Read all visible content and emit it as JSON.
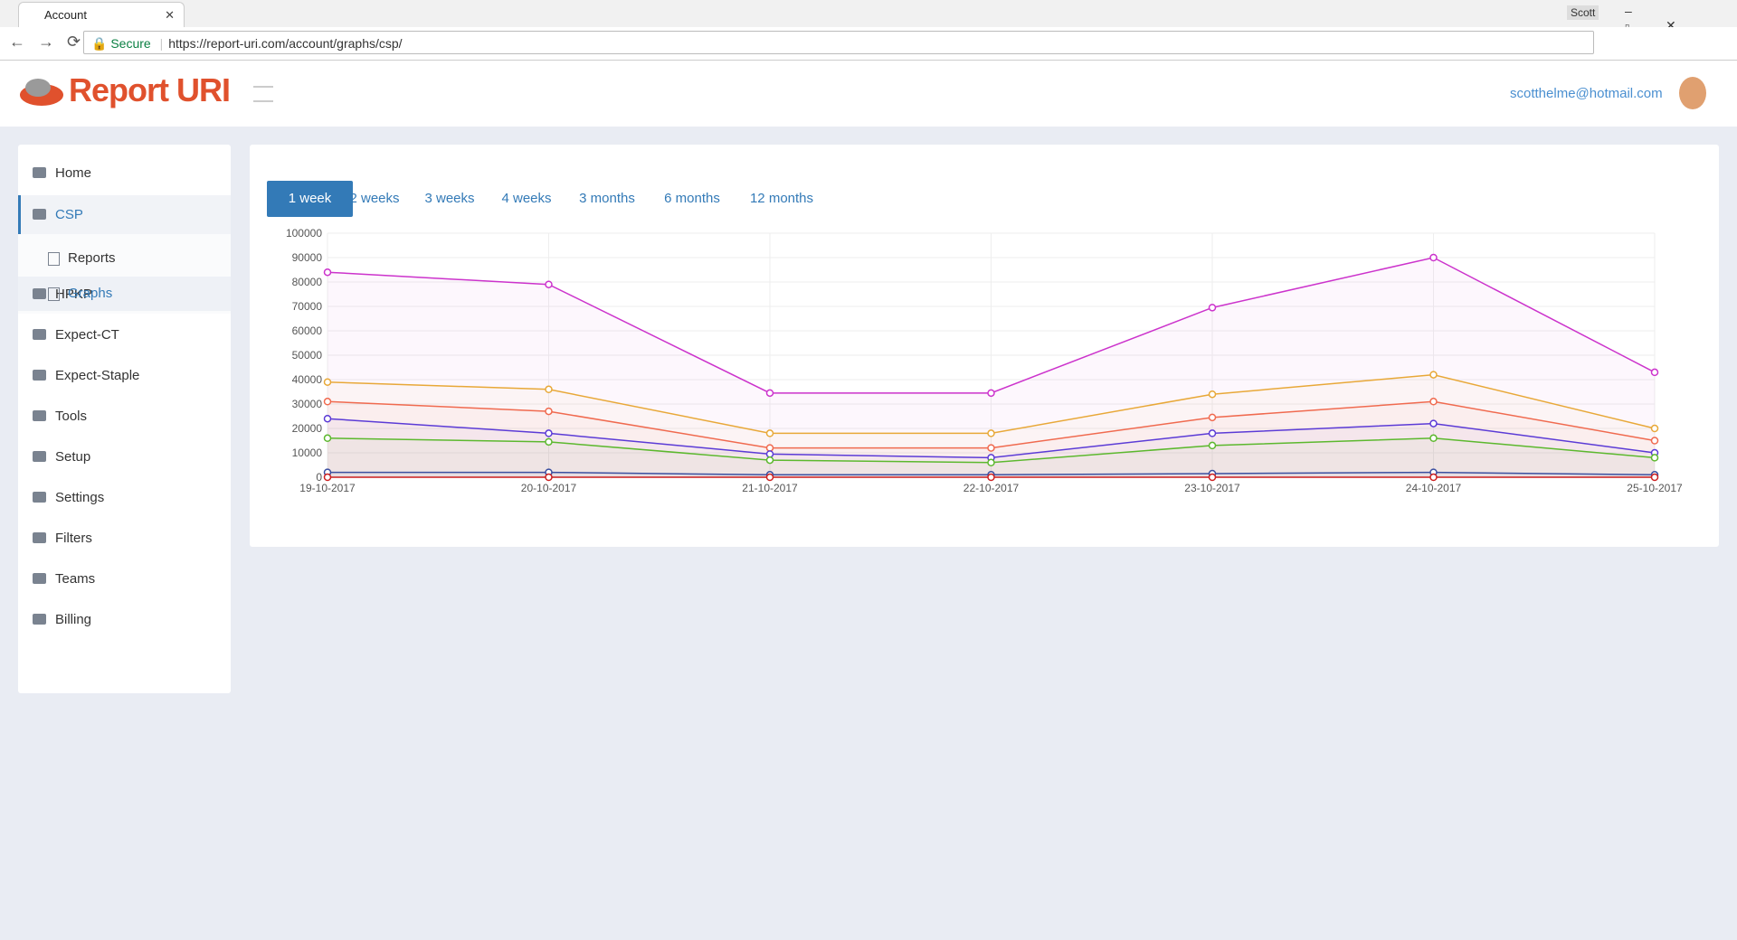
{
  "browser": {
    "tab_title": "Account",
    "profile": "Scott",
    "secure": "Secure",
    "url": "https://report-uri.com/account/graphs/csp/"
  },
  "header": {
    "logo": "Report URI",
    "email": "scotthelme@hotmail.com"
  },
  "sidebar": {
    "items": [
      "Home",
      "CSP",
      "HPKP",
      "Expect-CT",
      "Expect-Staple",
      "Tools",
      "Setup",
      "Settings",
      "Filters",
      "Teams",
      "Billing"
    ],
    "subitems": [
      "Reports",
      "Graphs"
    ]
  },
  "tabs": [
    "1 week",
    "2 weeks",
    "3 weeks",
    "4 weeks",
    "3 months",
    "6 months",
    "12 months"
  ],
  "chart_data": {
    "type": "line",
    "fill": true,
    "grid": true,
    "categories": [
      "19-10-2017",
      "20-10-2017",
      "21-10-2017",
      "22-10-2017",
      "23-10-2017",
      "24-10-2017",
      "25-10-2017"
    ],
    "ylim": [
      0,
      100000
    ],
    "yticks": [
      0,
      10000,
      20000,
      30000,
      40000,
      50000,
      60000,
      70000,
      80000,
      90000,
      100000
    ],
    "series": [
      {
        "color": "#cc33cc",
        "values": [
          84000,
          79000,
          34500,
          34500,
          69500,
          90000,
          43000
        ]
      },
      {
        "color": "#e8a838",
        "values": [
          39000,
          36000,
          18000,
          18000,
          34000,
          42000,
          20000
        ]
      },
      {
        "color": "#f06a4f",
        "values": [
          31000,
          27000,
          12000,
          12000,
          24500,
          31000,
          15000
        ]
      },
      {
        "color": "#5b3bd6",
        "values": [
          24000,
          18000,
          9500,
          8000,
          18000,
          22000,
          10000
        ]
      },
      {
        "color": "#5cb82e",
        "values": [
          16000,
          14500,
          7000,
          6000,
          13000,
          16000,
          8000
        ]
      },
      {
        "color": "#3b4fa0",
        "values": [
          2000,
          2000,
          1000,
          1000,
          1500,
          2000,
          1000
        ]
      },
      {
        "color": "#cc1f1f",
        "values": [
          0,
          0,
          0,
          0,
          0,
          0,
          0
        ]
      }
    ]
  }
}
